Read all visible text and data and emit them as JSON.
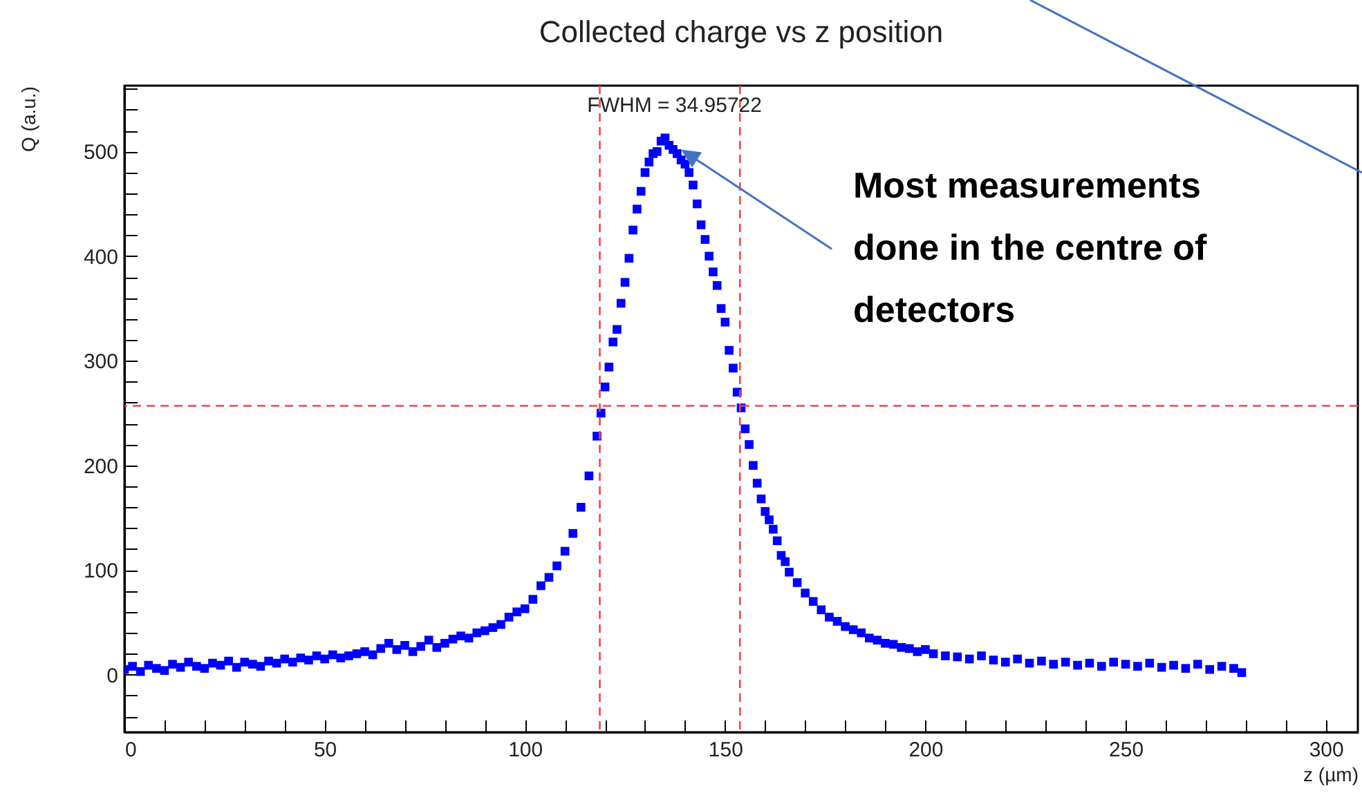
{
  "chart_data": {
    "type": "scatter",
    "title": "Collected charge vs z position",
    "xlabel": "z (µm)",
    "ylabel": "Q (a.u.)",
    "xlim": [
      0,
      308
    ],
    "ylim": [
      -55,
      563
    ],
    "xticks": [
      0,
      {
        "value": 10,
        "label": null
      },
      {
        "value": 20,
        "label": null
      },
      {
        "value": 30,
        "label": null
      },
      {
        "value": 40,
        "label": null
      },
      50,
      {
        "value": 60,
        "label": null
      },
      {
        "value": 70,
        "label": null
      },
      {
        "value": 80,
        "label": null
      },
      {
        "value": 90,
        "label": null
      },
      100,
      {
        "value": 110,
        "label": null
      },
      {
        "value": 120,
        "label": null
      },
      {
        "value": 130,
        "label": null
      },
      {
        "value": 140,
        "label": null
      },
      150,
      {
        "value": 160,
        "label": null
      },
      {
        "value": 170,
        "label": null
      },
      {
        "value": 180,
        "label": null
      },
      {
        "value": 190,
        "label": null
      },
      200,
      {
        "value": 210,
        "label": null
      },
      {
        "value": 220,
        "label": null
      },
      {
        "value": 230,
        "label": null
      },
      {
        "value": 240,
        "label": null
      },
      250,
      {
        "value": 260,
        "label": null
      },
      {
        "value": 270,
        "label": null
      },
      {
        "value": 280,
        "label": null
      },
      {
        "value": 290,
        "label": null
      },
      300
    ],
    "yticks": [
      {
        "value": -40,
        "label": null
      },
      {
        "value": -20,
        "label": null
      },
      0,
      {
        "value": 20,
        "label": null
      },
      {
        "value": 40,
        "label": null
      },
      {
        "value": 60,
        "label": null
      },
      {
        "value": 80,
        "label": null
      },
      100,
      {
        "value": 120,
        "label": null
      },
      {
        "value": 140,
        "label": null
      },
      {
        "value": 160,
        "label": null
      },
      {
        "value": 180,
        "label": null
      },
      200,
      {
        "value": 220,
        "label": null
      },
      {
        "value": 240,
        "label": null
      },
      {
        "value": 260,
        "label": null
      },
      {
        "value": 280,
        "label": null
      },
      300,
      {
        "value": 320,
        "label": null
      },
      {
        "value": 340,
        "label": null
      },
      {
        "value": 360,
        "label": null
      },
      {
        "value": 380,
        "label": null
      },
      400,
      {
        "value": 420,
        "label": null
      },
      {
        "value": 440,
        "label": null
      },
      {
        "value": 460,
        "label": null
      },
      {
        "value": 480,
        "label": null
      },
      500,
      {
        "value": 520,
        "label": null
      },
      {
        "value": 540,
        "label": null
      },
      {
        "value": 560,
        "label": null
      }
    ],
    "marker": "square",
    "series": [
      {
        "color": "#0000ff",
        "x": [
          0,
          2,
          4,
          6,
          8,
          10,
          12,
          14,
          16,
          18,
          20,
          22,
          24,
          26,
          28,
          30,
          32,
          34,
          36,
          38,
          40,
          42,
          44,
          46,
          48,
          50,
          52,
          54,
          56,
          58,
          60,
          62,
          64,
          66,
          68,
          70,
          72,
          74,
          76,
          78,
          80,
          82,
          84,
          86,
          88,
          90,
          92,
          94,
          96,
          98,
          100,
          102,
          104,
          106,
          108,
          110,
          112,
          114,
          116,
          118,
          119,
          120,
          121,
          122,
          123,
          124,
          125,
          126,
          127,
          128,
          129,
          130,
          131,
          132,
          133,
          134,
          135,
          136,
          137,
          138,
          139,
          140,
          141,
          142,
          143,
          144,
          145,
          146,
          147,
          148,
          149,
          150,
          151,
          152,
          153,
          154,
          155,
          156,
          157,
          158,
          159,
          160,
          161,
          162,
          163,
          164,
          165,
          166,
          168,
          170,
          172,
          174,
          176,
          178,
          180,
          182,
          184,
          186,
          188,
          190,
          192,
          194,
          196,
          198,
          200,
          202,
          205,
          208,
          211,
          214,
          217,
          220,
          223,
          226,
          229,
          232,
          235,
          238,
          241,
          244,
          247,
          250,
          253,
          256,
          259,
          262,
          265,
          268,
          271,
          274,
          277,
          279
        ],
        "values": [
          5,
          8,
          3,
          9,
          6,
          4,
          10,
          7,
          12,
          8,
          6,
          11,
          9,
          13,
          7,
          12,
          10,
          8,
          13,
          11,
          15,
          12,
          16,
          14,
          18,
          15,
          19,
          16,
          18,
          20,
          22,
          19,
          25,
          30,
          24,
          28,
          22,
          27,
          33,
          26,
          30,
          34,
          37,
          35,
          40,
          42,
          45,
          48,
          55,
          60,
          63,
          72,
          85,
          93,
          104,
          118,
          135,
          160,
          190,
          228,
          250,
          275,
          294,
          318,
          330,
          355,
          375,
          398,
          425,
          445,
          462,
          480,
          490,
          498,
          500,
          510,
          513,
          506,
          502,
          498,
          492,
          488,
          480,
          468,
          450,
          430,
          416,
          400,
          385,
          372,
          350,
          337,
          310,
          293,
          270,
          255,
          235,
          220,
          200,
          183,
          168,
          156,
          148,
          139,
          128,
          114,
          108,
          98,
          88,
          78,
          70,
          62,
          55,
          51,
          46,
          43,
          40,
          35,
          33,
          30,
          29,
          26,
          25,
          22,
          24,
          20,
          18,
          17,
          15,
          18,
          14,
          12,
          15,
          11,
          13,
          10,
          12,
          9,
          11,
          8,
          12,
          10,
          8,
          11,
          7,
          9,
          6,
          10,
          5,
          8,
          6,
          2
        ]
      }
    ],
    "ref_lines": [
      {
        "axis": "y",
        "value": 257,
        "color": "#ff4040",
        "line_style": "dashed"
      },
      {
        "axis": "x",
        "value": 118.7,
        "color": "#ff4040",
        "line_style": "dashed"
      },
      {
        "axis": "x",
        "value": 153.7,
        "color": "#ff4040",
        "line_style": "dashed"
      }
    ],
    "annotations": [
      "FWHM = 34.95722",
      {
        "text": "Most measurements done in the centre of detectors",
        "x": 139,
        "y": 502
      }
    ]
  }
}
